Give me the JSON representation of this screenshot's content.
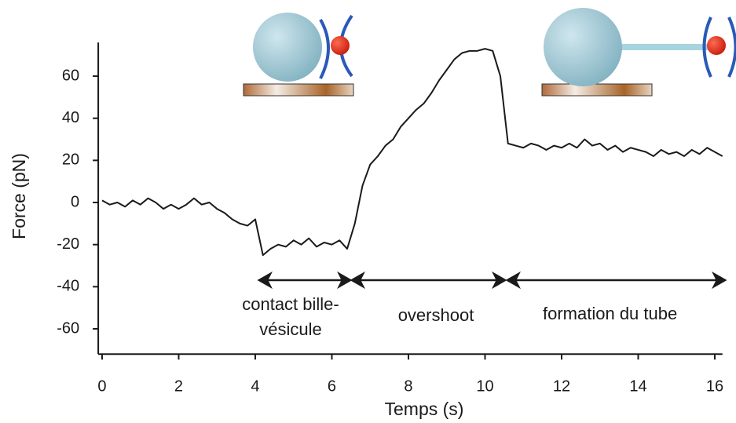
{
  "chart_data": {
    "type": "line",
    "xlabel": "Temps (s)",
    "ylabel": "Force (pN)",
    "x": [
      0,
      0.2,
      0.4,
      0.6,
      0.8,
      1.0,
      1.2,
      1.4,
      1.6,
      1.8,
      2.0,
      2.2,
      2.4,
      2.6,
      2.8,
      3.0,
      3.2,
      3.4,
      3.6,
      3.8,
      4.0,
      4.2,
      4.4,
      4.6,
      4.8,
      5.0,
      5.2,
      5.4,
      5.6,
      5.8,
      6.0,
      6.2,
      6.4,
      6.6,
      6.8,
      7.0,
      7.2,
      7.4,
      7.6,
      7.8,
      8.0,
      8.2,
      8.4,
      8.6,
      8.8,
      9.0,
      9.2,
      9.4,
      9.6,
      9.8,
      10.0,
      10.2,
      10.4,
      10.6,
      10.8,
      11.0,
      11.2,
      11.4,
      11.6,
      11.8,
      12.0,
      12.2,
      12.4,
      12.6,
      12.8,
      13.0,
      13.2,
      13.4,
      13.6,
      13.8,
      14.0,
      14.2,
      14.4,
      14.6,
      14.8,
      15.0,
      15.2,
      15.4,
      15.6,
      15.8,
      16.0,
      16.2
    ],
    "series": [
      {
        "color": "#1a1a1a",
        "values": [
          1,
          -1,
          0,
          -2,
          1,
          -1,
          2,
          0,
          -3,
          -1,
          -3,
          -1,
          2,
          -1,
          0,
          -3,
          -5,
          -8,
          -10,
          -11,
          -8,
          -25,
          -22,
          -20,
          -21,
          -18,
          -20,
          -17,
          -21,
          -19,
          -20,
          -18,
          -22,
          -10,
          8,
          18,
          22,
          27,
          30,
          36,
          40,
          44,
          47,
          52,
          58,
          63,
          68,
          71,
          72,
          72,
          73,
          72,
          60,
          28,
          27,
          26,
          28,
          27,
          25,
          27,
          26,
          28,
          26,
          30,
          27,
          28,
          25,
          27,
          24,
          26,
          25,
          24,
          22,
          25,
          23,
          24,
          22,
          25,
          23,
          26,
          24,
          22
        ]
      }
    ],
    "xlim": [
      -0.1,
      16.2
    ],
    "ylim": [
      -72,
      76
    ],
    "xticks": [
      0,
      2,
      4,
      6,
      8,
      10,
      12,
      14,
      16
    ],
    "yticks": [
      -60,
      -40,
      -20,
      0,
      20,
      40,
      60
    ],
    "annotations": [
      "contact bille-vésicule",
      "overshoot",
      "formation du tube"
    ]
  }
}
